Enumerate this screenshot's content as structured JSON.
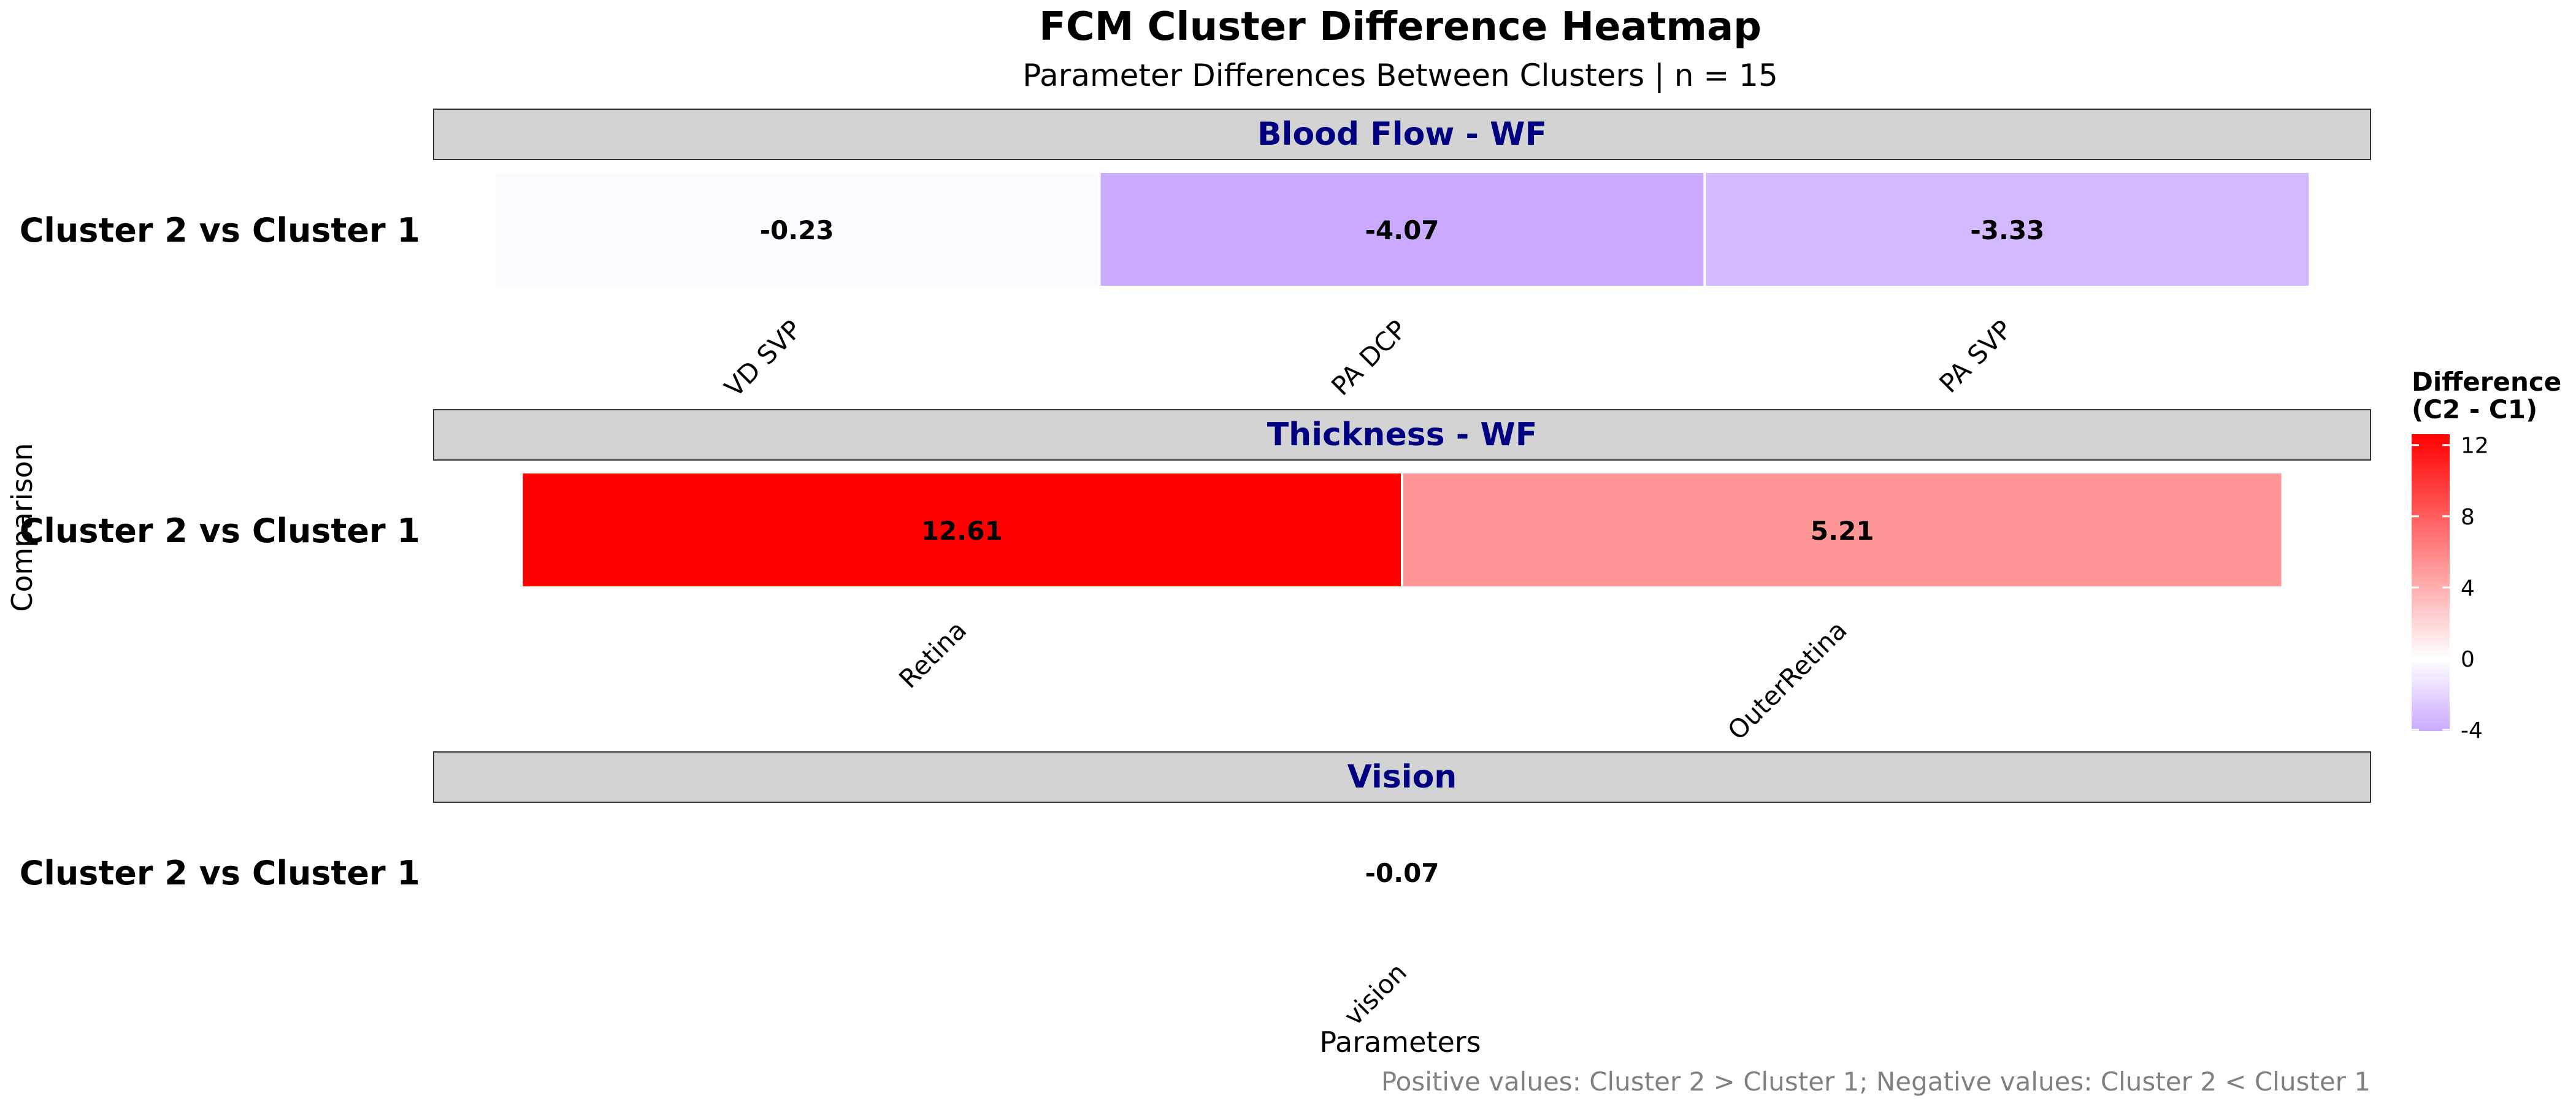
{
  "chart_data": {
    "type": "heatmap",
    "title": "FCM Cluster Difference Heatmap",
    "subtitle": "Parameter Differences Between Clusters | n = 15",
    "xlabel": "Parameters",
    "ylabel": "Comparison",
    "caption": "Positive values: Cluster 2 > Cluster 1; Negative values: Cluster 2 < Cluster 1",
    "legend": {
      "title_line1": "Difference",
      "title_line2": "(C2 - C1)",
      "position": "right",
      "range": [
        -4.07,
        12.61
      ],
      "ticks": [
        12,
        8,
        4,
        0,
        -4
      ],
      "tick_labels": [
        "12",
        "8",
        "4",
        "0",
        "-4"
      ],
      "low_color": "#c9aaff",
      "mid_color": "#ffffff",
      "high_color": "#ff0000"
    },
    "colors": {
      "panel_strip": "#d3d3d3",
      "strip_text": "#000080",
      "caption_text": "#808080"
    },
    "panels": [
      {
        "strip_label": "Blood Flow - WF",
        "row_label": "Cluster 2 vs Cluster 1",
        "categories": [
          "VD SVP",
          "PA DCP",
          "PA SVP"
        ],
        "values": [
          -0.23,
          -4.07,
          -3.33
        ],
        "value_labels": [
          "-0.23",
          "-4.07",
          "-3.33"
        ]
      },
      {
        "strip_label": "Thickness - WF",
        "row_label": "Cluster 2 vs Cluster 1",
        "categories": [
          "Retina",
          "OuterRetina"
        ],
        "values": [
          12.61,
          5.21
        ],
        "value_labels": [
          "12.61",
          "5.21"
        ]
      },
      {
        "strip_label": "Vision",
        "row_label": "Cluster 2 vs Cluster 1",
        "categories": [
          "vision"
        ],
        "values": [
          -0.07
        ],
        "value_labels": [
          "-0.07"
        ]
      }
    ]
  }
}
